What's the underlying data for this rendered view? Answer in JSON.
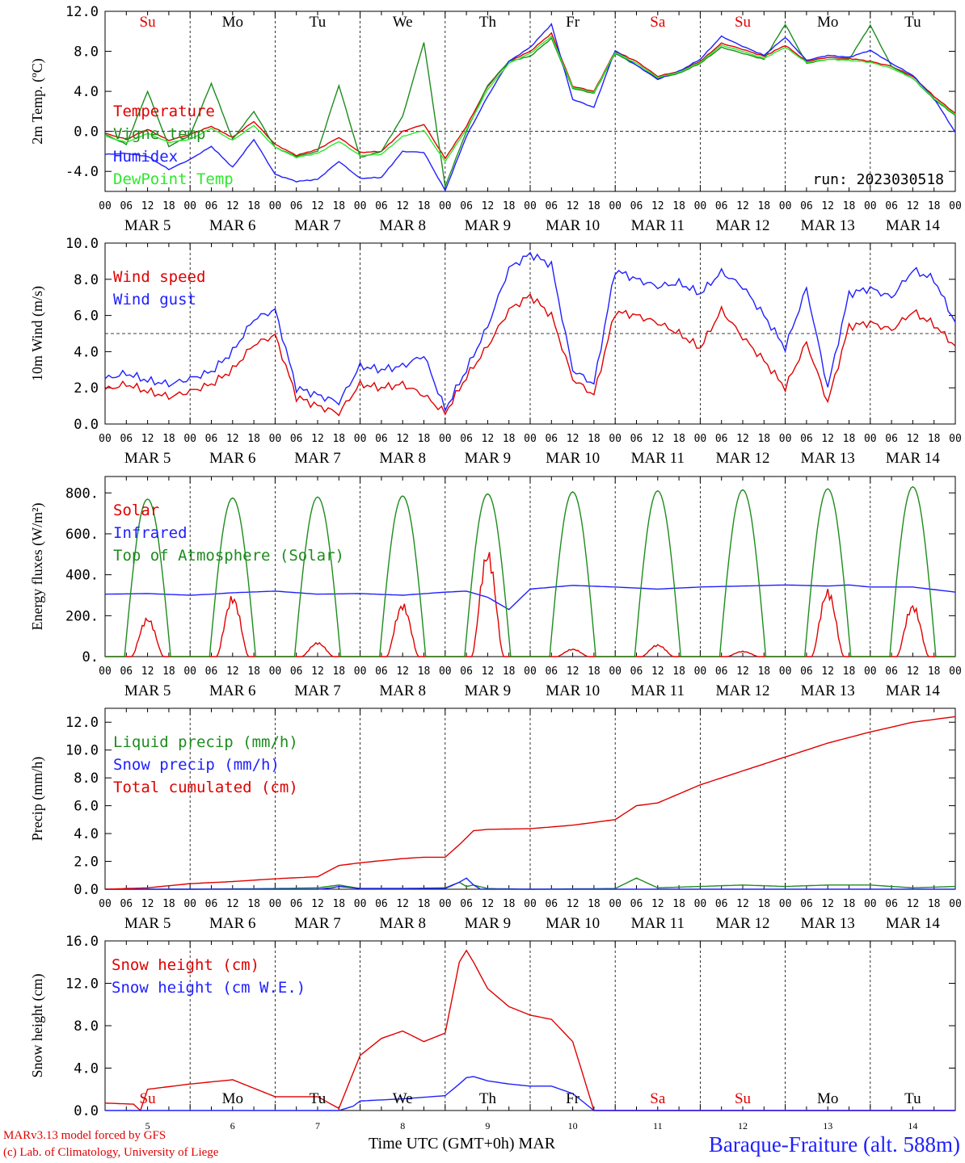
{
  "chart_data": [
    {
      "type": "line",
      "ylabel": "2m Temp. (ºC)",
      "ylim": [
        -6,
        12
      ],
      "yticks": [
        "-4.0",
        "0.0",
        "4.0",
        "8.0",
        "12.0"
      ],
      "hline": 0,
      "annotation": "run: 2023030518",
      "days_top": [
        "Su",
        "Mo",
        "Tu",
        "We",
        "Th",
        "Fr",
        "Sa",
        "Su",
        "Mo",
        "Tu"
      ],
      "days_top_colors": [
        "#e00000",
        "#000000",
        "#000000",
        "#000000",
        "#000000",
        "#000000",
        "#e00000",
        "#e00000",
        "#000000",
        "#000000"
      ],
      "x": [
        0,
        6,
        12,
        18,
        24,
        30,
        36,
        42,
        48,
        54,
        60,
        66,
        72,
        78,
        84,
        90,
        96,
        102,
        108,
        114,
        120,
        126,
        132,
        138,
        144,
        150,
        156,
        162,
        168,
        174,
        180,
        186,
        192,
        198,
        204,
        210,
        216,
        222,
        228,
        234,
        240
      ],
      "series": [
        {
          "name": "Temperature",
          "color": "#e00000",
          "values": [
            -0.2,
            -0.8,
            0.2,
            -0.9,
            -0.3,
            0.5,
            -0.6,
            1.0,
            -1.3,
            -2.4,
            -1.8,
            -0.6,
            -2.1,
            -2.0,
            0.0,
            0.7,
            -2.7,
            0.5,
            4.5,
            7.0,
            8.0,
            9.8,
            4.5,
            4.0,
            8.0,
            7.0,
            5.5,
            6.0,
            7.0,
            8.8,
            8.2,
            7.5,
            8.6,
            7.0,
            7.4,
            7.3,
            7.0,
            6.5,
            5.5,
            3.5,
            1.8
          ]
        },
        {
          "name": "Vigne temp",
          "color": "#1e8c1e",
          "values": [
            -0.3,
            -1.3,
            4.0,
            -1.5,
            -0.4,
            4.8,
            -0.8,
            2.0,
            -1.6,
            -2.5,
            -2.0,
            4.6,
            -2.6,
            -2.0,
            1.5,
            8.9,
            -5.5,
            0.0,
            4.6,
            7.0,
            7.5,
            9.3,
            4.3,
            3.8,
            7.8,
            6.6,
            5.3,
            5.8,
            6.8,
            8.4,
            7.8,
            7.2,
            10.7,
            6.8,
            7.2,
            7.2,
            10.6,
            6.5,
            5.3,
            3.2,
            1.6
          ]
        },
        {
          "name": "Humidex",
          "color": "#2020ff",
          "values": [
            -2.3,
            -2.2,
            -2.5,
            -3.8,
            -2.8,
            -1.5,
            -3.6,
            -0.8,
            -4.3,
            -5.0,
            -4.8,
            -3.0,
            -4.7,
            -4.6,
            -2.0,
            -2.1,
            -5.9,
            -0.5,
            3.5,
            7.0,
            8.4,
            10.7,
            3.2,
            2.4,
            8.1,
            6.6,
            5.2,
            6.0,
            7.2,
            9.5,
            8.5,
            7.6,
            9.4,
            7.1,
            7.6,
            7.4,
            8.1,
            6.8,
            5.6,
            3.3,
            -0.1
          ]
        },
        {
          "name": "DewPoint Temp",
          "color": "#2ee82e",
          "values": [
            -0.5,
            -1.1,
            -0.2,
            -1.1,
            -0.8,
            0.3,
            -0.9,
            0.6,
            -1.6,
            -2.6,
            -2.2,
            -1.0,
            -2.4,
            -2.3,
            -0.5,
            0.1,
            -3.0,
            0.2,
            4.2,
            6.8,
            7.8,
            9.5,
            4.4,
            3.9,
            7.9,
            6.8,
            5.4,
            5.9,
            6.9,
            8.6,
            8.0,
            7.3,
            8.4,
            6.9,
            7.2,
            7.1,
            6.9,
            6.3,
            5.3,
            3.3,
            1.7
          ]
        }
      ]
    },
    {
      "type": "line",
      "ylabel": "10m Wind (m/s)",
      "ylim": [
        0,
        10
      ],
      "yticks": [
        "0.0",
        "2.0",
        "4.0",
        "6.0",
        "8.0",
        "10.0"
      ],
      "hline": 5,
      "x": [
        0,
        6,
        12,
        18,
        24,
        30,
        36,
        42,
        48,
        54,
        60,
        66,
        72,
        78,
        84,
        90,
        96,
        102,
        108,
        114,
        120,
        126,
        132,
        138,
        144,
        150,
        156,
        162,
        168,
        174,
        180,
        186,
        192,
        198,
        204,
        210,
        216,
        222,
        228,
        234,
        240
      ],
      "series": [
        {
          "name": "Wind speed",
          "color": "#e00000",
          "values": [
            1.9,
            2.2,
            1.8,
            1.5,
            1.8,
            2.2,
            3.0,
            4.4,
            4.9,
            1.5,
            1.0,
            0.6,
            2.2,
            2.0,
            2.2,
            1.6,
            0.6,
            2.6,
            4.3,
            6.3,
            7.1,
            6.0,
            2.5,
            1.6,
            6.2,
            6.0,
            5.6,
            5.0,
            4.2,
            6.3,
            4.8,
            3.5,
            2.0,
            4.5,
            1.2,
            5.4,
            5.6,
            5.2,
            6.2,
            5.5,
            4.3
          ]
        },
        {
          "name": "Wind gust",
          "color": "#2020ff",
          "values": [
            2.5,
            2.8,
            2.4,
            2.2,
            2.5,
            2.9,
            4.0,
            5.8,
            6.3,
            2.0,
            1.6,
            1.2,
            3.2,
            3.0,
            3.2,
            3.8,
            0.8,
            3.0,
            5.4,
            8.6,
            9.4,
            8.8,
            3.0,
            2.2,
            8.5,
            8.0,
            7.6,
            7.8,
            7.2,
            8.4,
            7.6,
            6.0,
            4.2,
            7.5,
            2.0,
            7.2,
            7.5,
            7.0,
            8.5,
            8.0,
            5.6
          ]
        }
      ]
    },
    {
      "type": "line",
      "ylabel": "Energy fluxes (W/m²)",
      "ylim": [
        0,
        880
      ],
      "yticks": [
        "0.",
        "200.",
        "400.",
        "600.",
        "800."
      ],
      "series": [
        {
          "name": "Solar",
          "color": "#e00000",
          "peak_hours": [
            12,
            36,
            60,
            84,
            108,
            132,
            156,
            180,
            204,
            228
          ],
          "peak_values": [
            180,
            280,
            65,
            245,
            490,
            35,
            55,
            25,
            310,
            240
          ]
        },
        {
          "name": "Infrared",
          "color": "#2020ff",
          "x": [
            0,
            12,
            24,
            30,
            36,
            48,
            60,
            72,
            84,
            96,
            102,
            108,
            114,
            120,
            132,
            144,
            156,
            168,
            180,
            192,
            204,
            210,
            216,
            228,
            240
          ],
          "values": [
            305,
            308,
            300,
            305,
            312,
            320,
            305,
            308,
            300,
            315,
            320,
            290,
            230,
            330,
            348,
            340,
            330,
            340,
            345,
            350,
            345,
            350,
            340,
            340,
            315
          ]
        },
        {
          "name": "Top of Atmosphere (Solar)",
          "color": "#1e8c1e",
          "peak_hours": [
            12,
            36,
            60,
            84,
            108,
            132,
            156,
            180,
            204,
            228
          ],
          "peak_values": [
            770,
            775,
            780,
            785,
            795,
            805,
            810,
            815,
            820,
            830
          ]
        }
      ]
    },
    {
      "type": "line",
      "ylabel": "Precip (mm/h)",
      "ylim": [
        0,
        13
      ],
      "yticks": [
        "0.0",
        "2.0",
        "4.0",
        "6.0",
        "8.0",
        "10.0",
        "12.0"
      ],
      "series": [
        {
          "name": "Liquid precip (mm/h)",
          "color": "#1e8c1e",
          "x": [
            0,
            12,
            24,
            48,
            60,
            66,
            72,
            84,
            96,
            100,
            102,
            104,
            108,
            120,
            144,
            150,
            156,
            168,
            180,
            192,
            204,
            216,
            228,
            240
          ],
          "values": [
            0,
            0,
            0,
            0.05,
            0.1,
            0.3,
            0.05,
            0.05,
            0.1,
            0.5,
            0.2,
            0.3,
            0.05,
            0,
            0.05,
            0.8,
            0.1,
            0.2,
            0.3,
            0.2,
            0.3,
            0.3,
            0.1,
            0.2
          ]
        },
        {
          "name": "Snow precip (mm/h)",
          "color": "#2020ff",
          "x": [
            0,
            48,
            60,
            64,
            66,
            72,
            84,
            96,
            100,
            102,
            104,
            106,
            108,
            240
          ],
          "values": [
            0,
            0,
            0,
            0.1,
            0.2,
            0.05,
            0.05,
            0.05,
            0.5,
            0.8,
            0.3,
            0,
            0,
            0
          ]
        },
        {
          "name": "Total cumulated (cm)",
          "color": "#e00000",
          "x": [
            0,
            12,
            24,
            36,
            48,
            60,
            66,
            72,
            84,
            90,
            96,
            100,
            104,
            108,
            120,
            132,
            144,
            150,
            156,
            168,
            180,
            192,
            204,
            216,
            228,
            240
          ],
          "values": [
            0,
            0.1,
            0.4,
            0.55,
            0.75,
            0.9,
            1.7,
            1.9,
            2.2,
            2.3,
            2.3,
            3.2,
            4.2,
            4.3,
            4.35,
            4.6,
            5.0,
            6.0,
            6.2,
            7.5,
            8.5,
            9.5,
            10.5,
            11.3,
            12.0,
            12.4
          ]
        }
      ]
    },
    {
      "type": "line",
      "ylabel": "Snow height (cm)",
      "ylim": [
        0,
        16
      ],
      "yticks": [
        "0.0",
        "4.0",
        "8.0",
        "12.0",
        "16.0"
      ],
      "days_bottom": [
        "Su",
        "Mo",
        "Tu",
        "We",
        "Th",
        "Fr",
        "Sa",
        "Su",
        "Mo",
        "Tu"
      ],
      "days_bottom_colors": [
        "#e00000",
        "#000000",
        "#000000",
        "#000000",
        "#000000",
        "#000000",
        "#e00000",
        "#e00000",
        "#000000",
        "#000000"
      ],
      "x_day_numbers": [
        "5",
        "6",
        "7",
        "8",
        "9",
        "10",
        "11",
        "12",
        "13",
        "14"
      ],
      "series": [
        {
          "name": "Snow height (cm)",
          "color": "#e00000",
          "x": [
            0,
            8,
            10,
            12,
            24,
            36,
            48,
            60,
            66,
            72,
            78,
            84,
            90,
            96,
            100,
            102,
            104,
            108,
            114,
            120,
            126,
            132,
            138,
            240
          ],
          "values": [
            0.7,
            0.6,
            0,
            2.0,
            2.5,
            2.9,
            1.3,
            1.3,
            0.2,
            5.2,
            6.8,
            7.5,
            6.5,
            7.3,
            14.0,
            15.1,
            14.0,
            11.5,
            9.8,
            9.0,
            8.6,
            6.5,
            0,
            0
          ]
        },
        {
          "name": "Snow height (cm W.E.)",
          "color": "#2020ff",
          "x": [
            0,
            66,
            70,
            72,
            84,
            96,
            100,
            102,
            104,
            108,
            114,
            120,
            126,
            132,
            138,
            240
          ],
          "values": [
            0,
            0,
            0.4,
            0.9,
            1.1,
            1.4,
            2.5,
            3.1,
            3.2,
            2.8,
            2.5,
            2.3,
            2.3,
            1.6,
            0,
            0
          ]
        }
      ]
    }
  ],
  "x_axis": {
    "hour_ticks": [
      "00",
      "06",
      "12",
      "18"
    ],
    "date_labels": [
      "MAR  5",
      "MAR  6",
      "MAR  7",
      "MAR  8",
      "MAR  9",
      "MAR 10",
      "MAR 11",
      "MAR 12",
      "MAR 13",
      "MAR 14"
    ],
    "xlabel": "Time UTC (GMT+0h)",
    "month": "MAR"
  },
  "footer": {
    "model_text": "MARv3.13 model forced by GFS",
    "copyright_text": "(c) Lab. of Climatology, University of Liege",
    "station": "Baraque-Fraiture (alt. 588m)"
  }
}
